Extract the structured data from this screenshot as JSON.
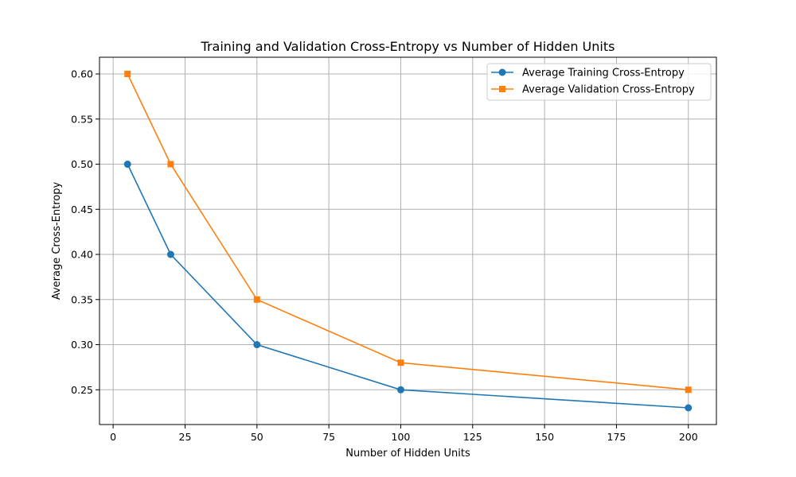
{
  "chart_data": {
    "type": "line",
    "title": "Training and Validation Cross-Entropy vs Number of Hidden Units",
    "xlabel": "Number of Hidden Units",
    "ylabel": "Average Cross-Entropy",
    "x": [
      5,
      20,
      50,
      100,
      200
    ],
    "xlim": [
      -4.75,
      209.75
    ],
    "ylim": [
      0.2115,
      0.6185
    ],
    "xticks": [
      0,
      25,
      50,
      75,
      100,
      125,
      150,
      175,
      200
    ],
    "yticks": [
      0.25,
      0.3,
      0.35,
      0.4,
      0.45,
      0.5,
      0.55,
      0.6
    ],
    "xtick_labels": [
      "0",
      "25",
      "50",
      "75",
      "100",
      "125",
      "150",
      "175",
      "200"
    ],
    "ytick_labels": [
      "0.25",
      "0.30",
      "0.35",
      "0.40",
      "0.45",
      "0.50",
      "0.55",
      "0.60"
    ],
    "grid": true,
    "legend_position": "top-right",
    "series": [
      {
        "name": "Average Training Cross-Entropy",
        "values": [
          0.5,
          0.4,
          0.3,
          0.25,
          0.23
        ],
        "color": "#1f77b4",
        "marker": "circle"
      },
      {
        "name": "Average Validation Cross-Entropy",
        "values": [
          0.6,
          0.5,
          0.35,
          0.28,
          0.25
        ],
        "color": "#ff7f0e",
        "marker": "square"
      }
    ]
  }
}
